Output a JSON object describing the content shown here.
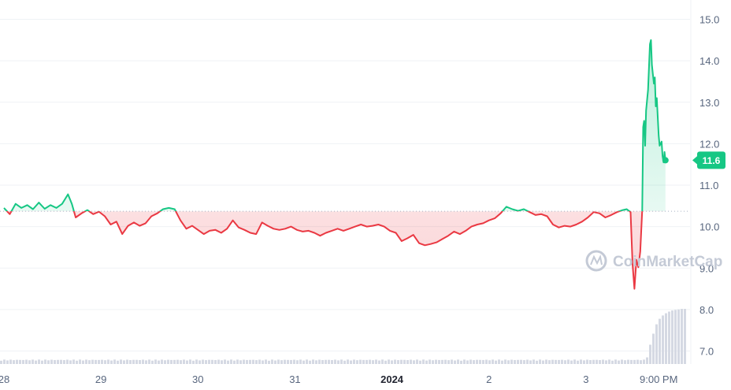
{
  "chart_data": {
    "type": "line",
    "y_ticks": [
      "15.0",
      "14.0",
      "13.0",
      "12.0",
      "11.0",
      "10.0",
      "9.0",
      "8.0",
      "7.0"
    ],
    "ylim": [
      6.7,
      15.3
    ],
    "x_ticks": [
      {
        "label": "28",
        "t": 0.0,
        "bold": false
      },
      {
        "label": "29",
        "t": 1.0,
        "bold": false
      },
      {
        "label": "30",
        "t": 2.0,
        "bold": false
      },
      {
        "label": "31",
        "t": 3.0,
        "bold": false
      },
      {
        "label": "2024",
        "t": 4.0,
        "bold": true
      },
      {
        "label": "2",
        "t": 5.0,
        "bold": false
      },
      {
        "label": "3",
        "t": 6.0,
        "bold": false
      },
      {
        "label": "9:00 PM",
        "t": 6.75,
        "bold": false
      }
    ],
    "xlim": [
      0.0,
      7.0
    ],
    "reference_price": 10.37,
    "current_price_label": "11.6",
    "up_color": "#16c784",
    "down_color": "#ea3943",
    "series": [
      {
        "values": [
          [
            0.0,
            10.45
          ],
          [
            0.06,
            10.3
          ],
          [
            0.12,
            10.55
          ],
          [
            0.18,
            10.45
          ],
          [
            0.24,
            10.52
          ],
          [
            0.3,
            10.42
          ],
          [
            0.36,
            10.58
          ],
          [
            0.42,
            10.43
          ],
          [
            0.48,
            10.52
          ],
          [
            0.54,
            10.45
          ],
          [
            0.6,
            10.55
          ],
          [
            0.66,
            10.78
          ],
          [
            0.7,
            10.55
          ],
          [
            0.74,
            10.22
          ],
          [
            0.8,
            10.32
          ],
          [
            0.86,
            10.4
          ],
          [
            0.92,
            10.3
          ],
          [
            0.98,
            10.36
          ],
          [
            1.04,
            10.25
          ],
          [
            1.1,
            10.05
          ],
          [
            1.16,
            10.12
          ],
          [
            1.22,
            9.82
          ],
          [
            1.28,
            10.02
          ],
          [
            1.34,
            10.1
          ],
          [
            1.4,
            10.02
          ],
          [
            1.46,
            10.08
          ],
          [
            1.52,
            10.25
          ],
          [
            1.58,
            10.32
          ],
          [
            1.64,
            10.42
          ],
          [
            1.7,
            10.45
          ],
          [
            1.76,
            10.42
          ],
          [
            1.82,
            10.15
          ],
          [
            1.88,
            9.95
          ],
          [
            1.94,
            10.02
          ],
          [
            2.0,
            9.92
          ],
          [
            2.06,
            9.82
          ],
          [
            2.12,
            9.9
          ],
          [
            2.18,
            9.92
          ],
          [
            2.24,
            9.85
          ],
          [
            2.3,
            9.95
          ],
          [
            2.36,
            10.15
          ],
          [
            2.42,
            9.98
          ],
          [
            2.48,
            9.92
          ],
          [
            2.54,
            9.85
          ],
          [
            2.6,
            9.82
          ],
          [
            2.66,
            10.1
          ],
          [
            2.72,
            10.02
          ],
          [
            2.78,
            9.95
          ],
          [
            2.84,
            9.92
          ],
          [
            2.9,
            9.95
          ],
          [
            2.96,
            10.0
          ],
          [
            3.02,
            9.92
          ],
          [
            3.08,
            9.88
          ],
          [
            3.14,
            9.9
          ],
          [
            3.2,
            9.85
          ],
          [
            3.26,
            9.78
          ],
          [
            3.32,
            9.85
          ],
          [
            3.38,
            9.9
          ],
          [
            3.44,
            9.95
          ],
          [
            3.5,
            9.9
          ],
          [
            3.56,
            9.95
          ],
          [
            3.62,
            10.0
          ],
          [
            3.68,
            10.05
          ],
          [
            3.74,
            10.0
          ],
          [
            3.8,
            10.02
          ],
          [
            3.86,
            10.05
          ],
          [
            3.92,
            10.0
          ],
          [
            3.98,
            9.9
          ],
          [
            4.04,
            9.85
          ],
          [
            4.1,
            9.65
          ],
          [
            4.16,
            9.72
          ],
          [
            4.22,
            9.8
          ],
          [
            4.28,
            9.6
          ],
          [
            4.34,
            9.55
          ],
          [
            4.4,
            9.58
          ],
          [
            4.46,
            9.62
          ],
          [
            4.52,
            9.7
          ],
          [
            4.58,
            9.78
          ],
          [
            4.64,
            9.88
          ],
          [
            4.7,
            9.82
          ],
          [
            4.76,
            9.9
          ],
          [
            4.82,
            10.0
          ],
          [
            4.88,
            10.05
          ],
          [
            4.94,
            10.08
          ],
          [
            5.0,
            10.15
          ],
          [
            5.06,
            10.2
          ],
          [
            5.12,
            10.32
          ],
          [
            5.18,
            10.48
          ],
          [
            5.24,
            10.42
          ],
          [
            5.3,
            10.38
          ],
          [
            5.36,
            10.42
          ],
          [
            5.42,
            10.35
          ],
          [
            5.48,
            10.28
          ],
          [
            5.54,
            10.3
          ],
          [
            5.6,
            10.25
          ],
          [
            5.66,
            10.05
          ],
          [
            5.72,
            9.98
          ],
          [
            5.78,
            10.02
          ],
          [
            5.84,
            10.0
          ],
          [
            5.9,
            10.05
          ],
          [
            5.96,
            10.12
          ],
          [
            6.02,
            10.22
          ],
          [
            6.08,
            10.35
          ],
          [
            6.14,
            10.32
          ],
          [
            6.2,
            10.22
          ],
          [
            6.26,
            10.28
          ],
          [
            6.32,
            10.35
          ],
          [
            6.38,
            10.4
          ],
          [
            6.42,
            10.42
          ],
          [
            6.46,
            10.35
          ],
          [
            6.48,
            9.1
          ],
          [
            6.5,
            8.5
          ],
          [
            6.52,
            9.2
          ],
          [
            6.54,
            9.02
          ],
          [
            6.56,
            9.4
          ],
          [
            6.58,
            10.4
          ],
          [
            6.59,
            12.4
          ],
          [
            6.6,
            12.55
          ],
          [
            6.61,
            11.95
          ],
          [
            6.62,
            12.8
          ],
          [
            6.64,
            13.3
          ],
          [
            6.66,
            14.4
          ],
          [
            6.67,
            14.5
          ],
          [
            6.68,
            13.9
          ],
          [
            6.7,
            13.45
          ],
          [
            6.71,
            13.6
          ],
          [
            6.72,
            12.9
          ],
          [
            6.73,
            13.1
          ],
          [
            6.75,
            12.2
          ],
          [
            6.76,
            11.95
          ],
          [
            6.78,
            12.05
          ],
          [
            6.79,
            11.7
          ],
          [
            6.8,
            11.55
          ],
          [
            6.81,
            11.8
          ],
          [
            6.82,
            11.6
          ]
        ]
      }
    ],
    "volume": {
      "flat_level": 0.07,
      "surge_start_t": 6.6,
      "surge_values": [
        0.12,
        0.35,
        0.55,
        0.72,
        0.82,
        0.88,
        0.92,
        0.95,
        0.97,
        0.98,
        0.99,
        1.0
      ]
    }
  },
  "watermark": "CoinMarketCap"
}
